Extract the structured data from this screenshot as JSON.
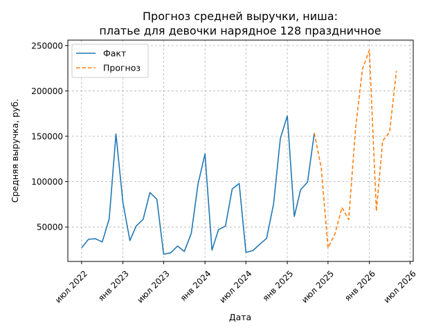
{
  "chart_data": {
    "type": "line",
    "title": [
      "Прогноз средней выручки, ниша:",
      "платье для девочки нарядное 128 праздничное"
    ],
    "xlabel": "Дата",
    "ylabel": "Средняя выручка, руб.",
    "xlim": [
      "2022-05-01",
      "2026-07-15"
    ],
    "ylim": [
      12000,
      256000
    ],
    "x_ticks": [
      {
        "date": "2022-07-01",
        "label": "июл 2022"
      },
      {
        "date": "2023-01-01",
        "label": "янв 2023"
      },
      {
        "date": "2023-07-01",
        "label": "июл 2023"
      },
      {
        "date": "2024-01-01",
        "label": "янв 2024"
      },
      {
        "date": "2024-07-01",
        "label": "июл 2024"
      },
      {
        "date": "2025-01-01",
        "label": "янв 2025"
      },
      {
        "date": "2025-07-01",
        "label": "июл 2025"
      },
      {
        "date": "2026-01-01",
        "label": "янв 2026"
      },
      {
        "date": "2026-07-01",
        "label": "июл 2026"
      }
    ],
    "y_ticks": [
      {
        "value": 50000,
        "label": "50000"
      },
      {
        "value": 100000,
        "label": "100000"
      },
      {
        "value": 150000,
        "label": "150000"
      },
      {
        "value": 200000,
        "label": "200000"
      },
      {
        "value": 250000,
        "label": "250000"
      }
    ],
    "grid": true,
    "legend_position": "top-left",
    "series": [
      {
        "name": "Факт",
        "color": "#1f77b4",
        "style": "solid",
        "points": [
          [
            "2022-07-01",
            27000
          ],
          [
            "2022-08-01",
            36500
          ],
          [
            "2022-09-01",
            37000
          ],
          [
            "2022-10-01",
            33500
          ],
          [
            "2022-11-01",
            59000
          ],
          [
            "2022-12-01",
            152500
          ],
          [
            "2023-01-01",
            77000
          ],
          [
            "2023-02-01",
            35000
          ],
          [
            "2023-03-01",
            51000
          ],
          [
            "2023-04-01",
            58500
          ],
          [
            "2023-05-01",
            88000
          ],
          [
            "2023-06-01",
            80500
          ],
          [
            "2023-07-01",
            20000
          ],
          [
            "2023-08-01",
            21500
          ],
          [
            "2023-09-01",
            29000
          ],
          [
            "2023-10-01",
            23000
          ],
          [
            "2023-11-01",
            43000
          ],
          [
            "2023-12-01",
            97500
          ],
          [
            "2024-01-01",
            130500
          ],
          [
            "2024-02-01",
            24500
          ],
          [
            "2024-03-01",
            47000
          ],
          [
            "2024-04-01",
            51000
          ],
          [
            "2024-05-01",
            92000
          ],
          [
            "2024-06-01",
            98000
          ],
          [
            "2024-07-01",
            22000
          ],
          [
            "2024-08-01",
            24000
          ],
          [
            "2024-09-01",
            31000
          ],
          [
            "2024-10-01",
            37500
          ],
          [
            "2024-11-01",
            75500
          ],
          [
            "2024-12-01",
            147500
          ],
          [
            "2025-01-01",
            172500
          ],
          [
            "2025-02-01",
            61500
          ],
          [
            "2025-03-01",
            91000
          ],
          [
            "2025-04-01",
            99500
          ],
          [
            "2025-05-01",
            153500
          ]
        ]
      },
      {
        "name": "Прогноз",
        "color": "#ff7f0e",
        "style": "dashed",
        "points": [
          [
            "2025-05-01",
            153500
          ],
          [
            "2025-06-01",
            115000
          ],
          [
            "2025-07-01",
            27000
          ],
          [
            "2025-08-01",
            42500
          ],
          [
            "2025-09-01",
            71500
          ],
          [
            "2025-10-01",
            58000
          ],
          [
            "2025-11-01",
            160000
          ],
          [
            "2025-12-01",
            224000
          ],
          [
            "2026-01-01",
            245000
          ],
          [
            "2026-02-01",
            67500
          ],
          [
            "2026-03-01",
            145000
          ],
          [
            "2026-04-01",
            154500
          ],
          [
            "2026-05-01",
            222000
          ]
        ]
      }
    ]
  }
}
